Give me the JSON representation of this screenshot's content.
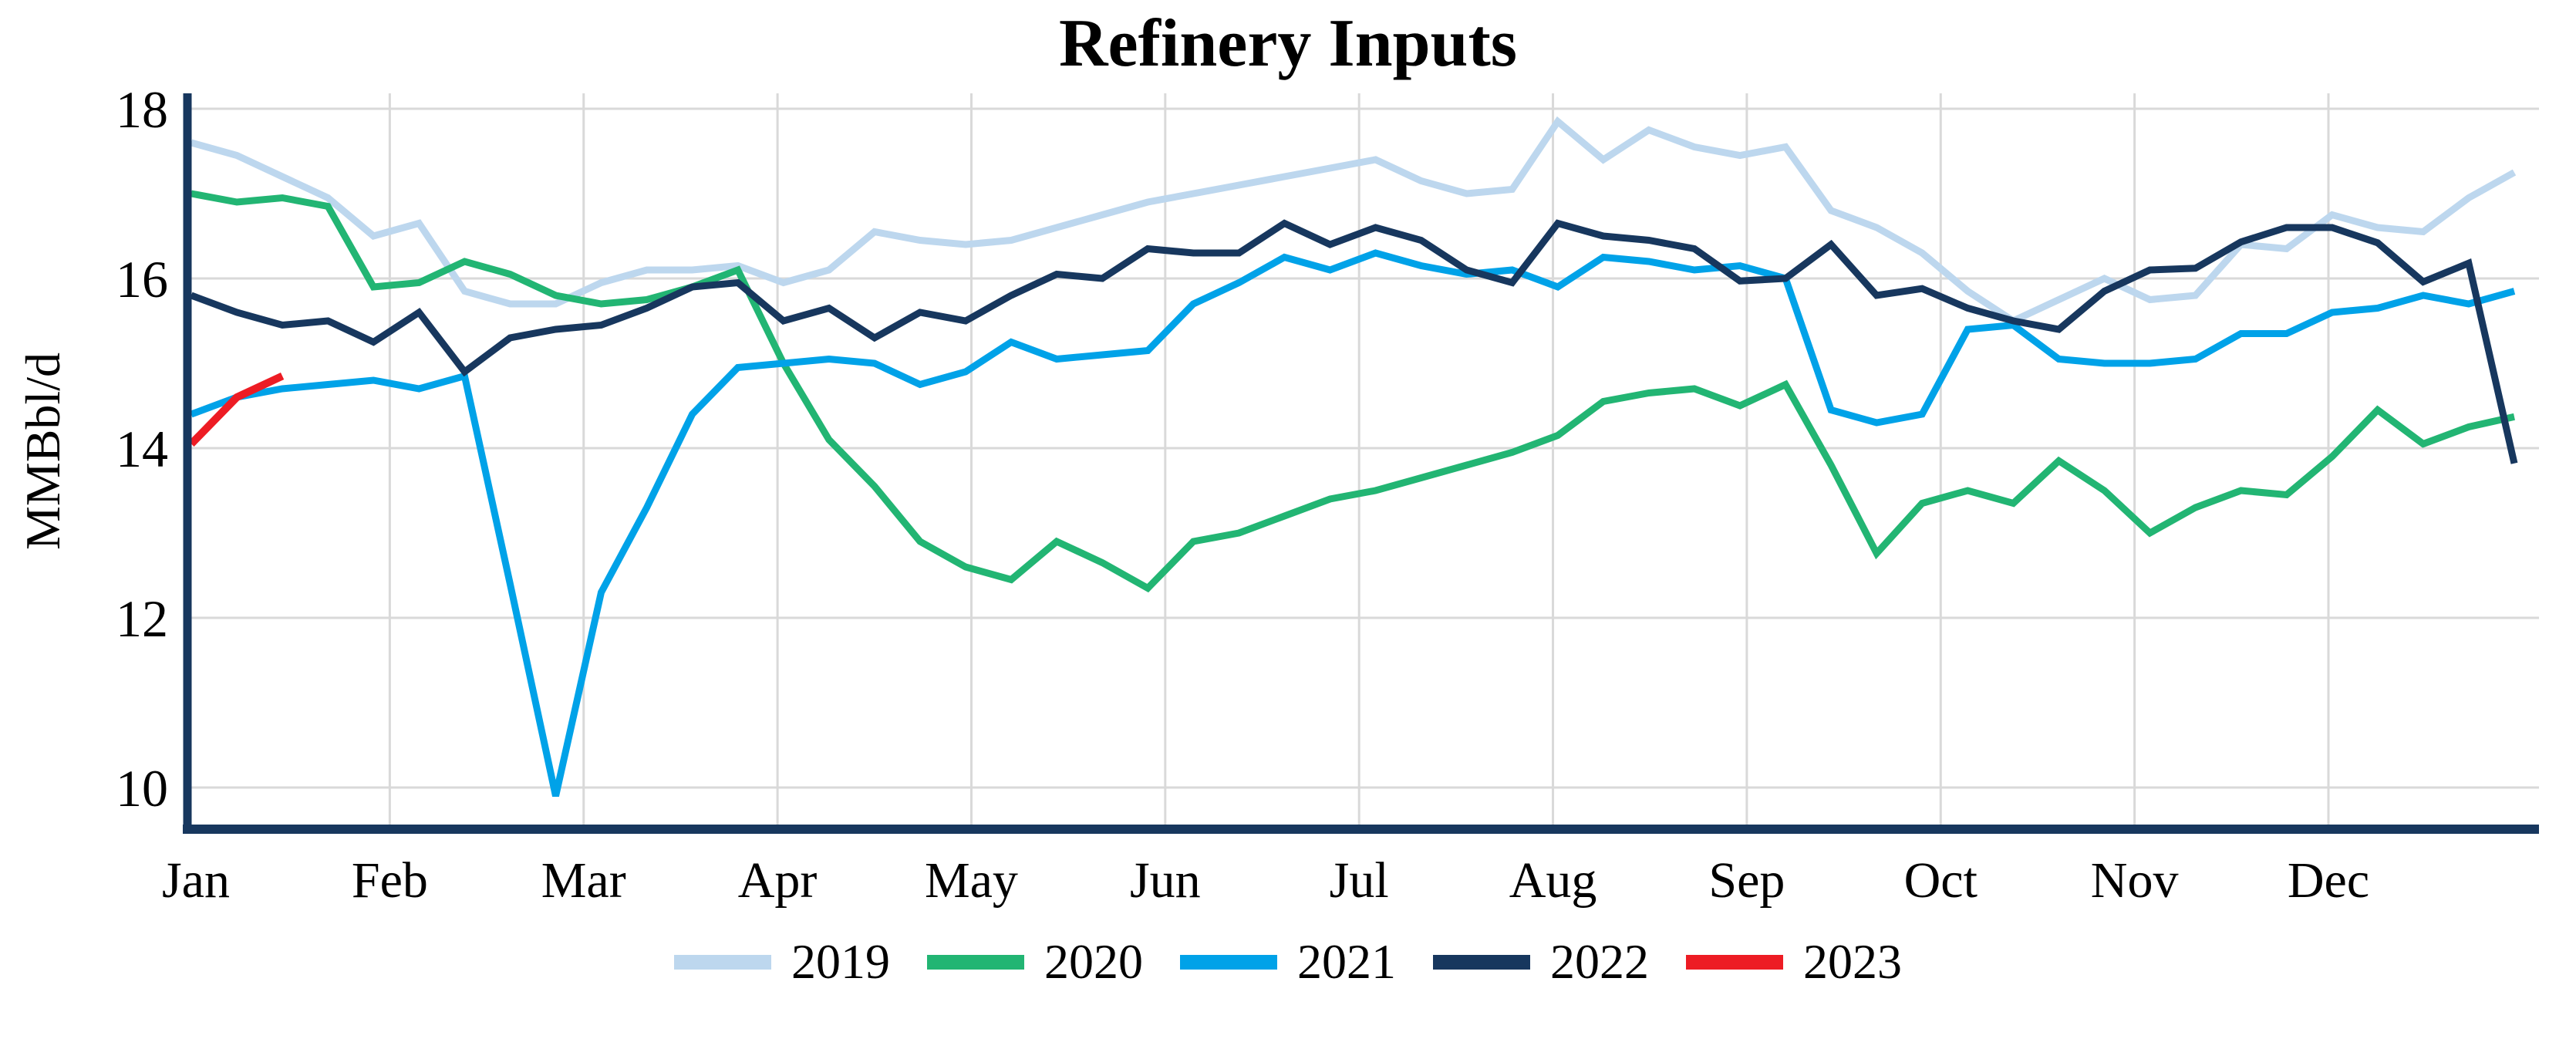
{
  "title": "Refinery Inputs",
  "y_axis": {
    "label": "MMBbl/d",
    "ticks": [
      18,
      16,
      14,
      12,
      10
    ]
  },
  "x_axis": {
    "months": [
      "Jan",
      "Feb",
      "Mar",
      "Apr",
      "May",
      "Jun",
      "Jul",
      "Aug",
      "Sep",
      "Oct",
      "Nov",
      "Dec"
    ]
  },
  "colors": {
    "axis": "#17375E",
    "gridline": "#D9D9D9",
    "background": "#FFFFFF",
    "text": "#000000"
  },
  "chart_data": {
    "type": "line",
    "title": "Refinery Inputs",
    "xlabel": "",
    "ylabel": "MMBbl/d",
    "ylim": [
      9.5,
      18.2
    ],
    "y_ticks": [
      10,
      12,
      14,
      16,
      18
    ],
    "grid": true,
    "legend_position": "bottom",
    "x_mode": "52 weekly points spanning Jan through late Dec; month ticks evenly spaced",
    "categories_note": "weeks 1-52 of each year",
    "series": [
      {
        "name": "2019",
        "color": "#BDD7EE",
        "values": [
          17.6,
          17.45,
          17.2,
          16.95,
          16.5,
          16.65,
          15.85,
          15.7,
          15.7,
          15.95,
          16.1,
          16.1,
          16.15,
          15.95,
          16.1,
          16.55,
          16.45,
          16.4,
          16.45,
          16.6,
          16.75,
          16.9,
          17.0,
          17.1,
          17.2,
          17.3,
          17.4,
          17.15,
          17.0,
          17.05,
          17.85,
          17.4,
          17.75,
          17.55,
          17.45,
          17.55,
          16.8,
          16.6,
          16.3,
          15.85,
          15.5,
          15.75,
          16.0,
          15.75,
          15.8,
          16.4,
          16.35,
          16.75,
          16.6,
          16.55,
          16.95,
          17.25
        ]
      },
      {
        "name": "2020",
        "color": "#22B573",
        "values": [
          17.0,
          16.9,
          16.95,
          16.85,
          15.9,
          15.95,
          16.2,
          16.05,
          15.8,
          15.7,
          15.75,
          15.9,
          16.1,
          15.0,
          14.1,
          13.55,
          12.9,
          12.6,
          12.45,
          12.9,
          12.65,
          12.35,
          12.9,
          13.0,
          13.2,
          13.4,
          13.5,
          13.65,
          13.8,
          13.95,
          14.15,
          14.55,
          14.65,
          14.7,
          14.5,
          14.75,
          13.8,
          12.76,
          13.35,
          13.5,
          13.35,
          13.85,
          13.5,
          13.0,
          13.3,
          13.5,
          13.45,
          13.9,
          14.45,
          14.05,
          14.25,
          14.37
        ]
      },
      {
        "name": "2021",
        "color": "#00A2E8",
        "values": [
          14.4,
          14.6,
          14.7,
          14.75,
          14.8,
          14.7,
          14.85,
          12.4,
          9.9,
          12.3,
          13.3,
          14.4,
          14.95,
          15.0,
          15.05,
          15.0,
          14.75,
          14.9,
          15.25,
          15.05,
          15.1,
          15.15,
          15.7,
          15.95,
          16.25,
          16.1,
          16.3,
          16.15,
          16.05,
          16.1,
          15.9,
          16.25,
          16.2,
          16.1,
          16.15,
          16.0,
          14.45,
          14.3,
          14.4,
          15.4,
          15.45,
          15.05,
          15.0,
          15.0,
          15.05,
          15.35,
          15.35,
          15.6,
          15.65,
          15.8,
          15.7,
          15.85
        ]
      },
      {
        "name": "2022",
        "color": "#17375E",
        "values": [
          15.8,
          15.6,
          15.45,
          15.5,
          15.25,
          15.6,
          14.9,
          15.3,
          15.4,
          15.45,
          15.65,
          15.9,
          15.95,
          15.5,
          15.65,
          15.3,
          15.6,
          15.5,
          15.8,
          16.05,
          16.0,
          16.35,
          16.3,
          16.3,
          16.65,
          16.4,
          16.6,
          16.45,
          16.1,
          15.95,
          16.65,
          16.5,
          16.45,
          16.35,
          15.97,
          16.0,
          16.4,
          15.8,
          15.88,
          15.65,
          15.5,
          15.4,
          15.85,
          16.1,
          16.12,
          16.43,
          16.6,
          16.6,
          16.42,
          15.96,
          16.18,
          13.82
        ]
      },
      {
        "name": "2023",
        "color": "#ED1C24",
        "values": [
          14.05,
          14.6,
          14.85
        ]
      }
    ]
  }
}
